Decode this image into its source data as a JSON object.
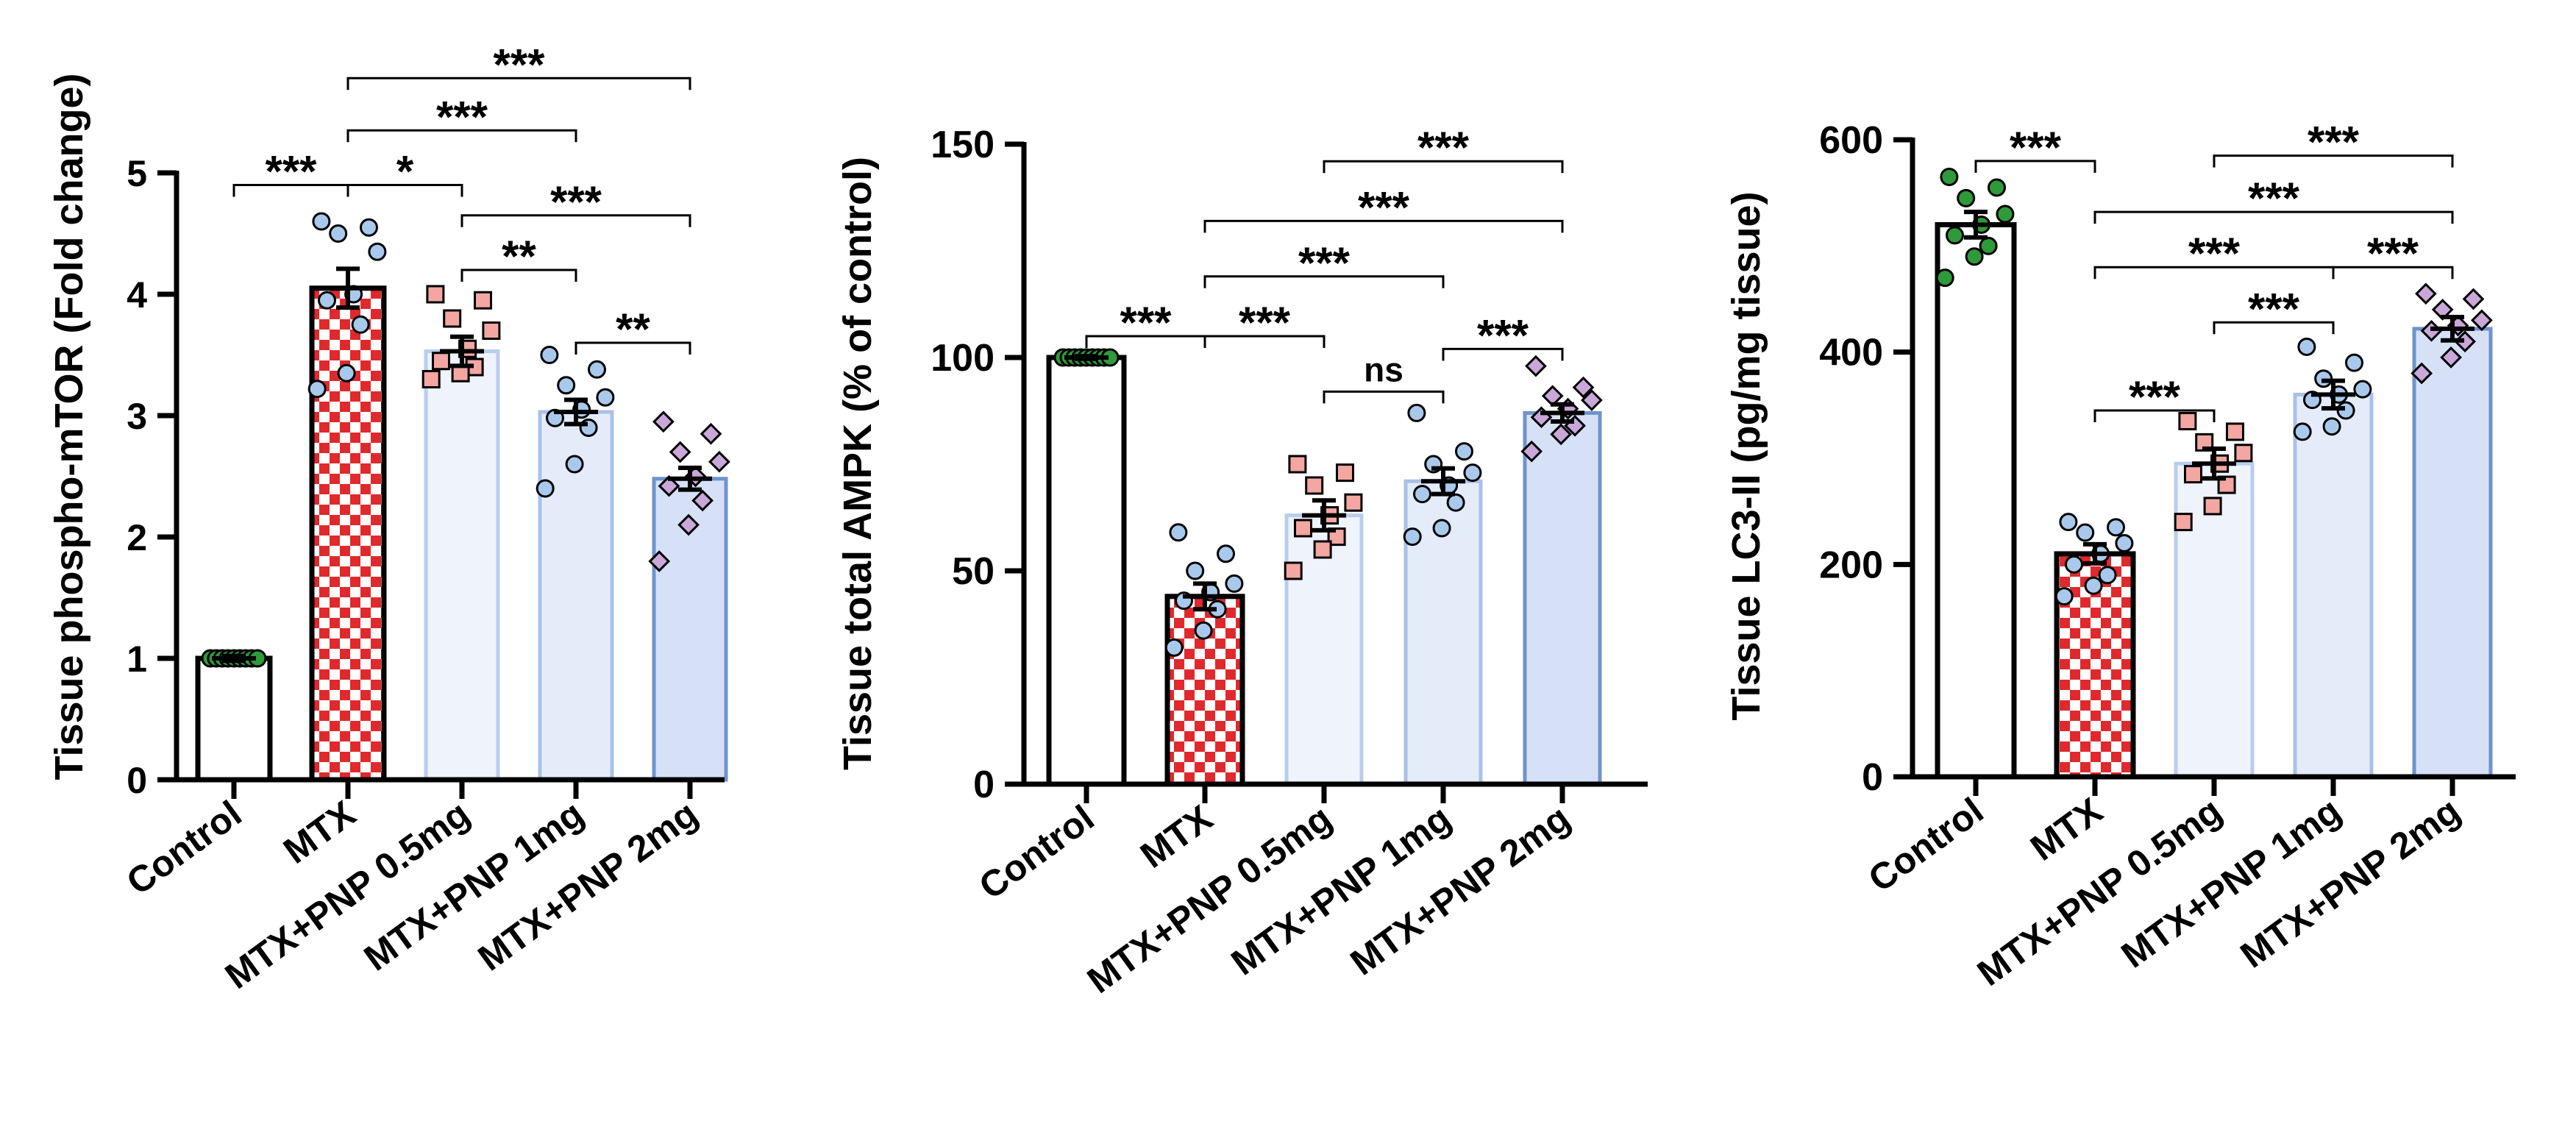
{
  "colors": {
    "control_fill": "#ffffff",
    "checker_red": "#e0292d",
    "checker_white": "#ffffff",
    "pnp05_fill": "#eef3fc",
    "pnp05_stroke": "#b9cdee",
    "pnp1_fill": "#e4ecfa",
    "pnp1_stroke": "#a9c1e8",
    "pnp2_fill": "#d6e1f7",
    "pnp2_stroke": "#6f93cc",
    "dot_control": "#2e9a39",
    "dot_mtx": "#a9c9ec",
    "dot_pnp05": "#f4a6a2",
    "dot_pnp1": "#a9c9ec",
    "dot_pnp2": "#c9a7d8"
  },
  "chart_data": [
    {
      "type": "bar",
      "title": "",
      "ylabel": "Tissue phospho-mTOR (Fold change)",
      "xlabel": "",
      "categories": [
        "Control",
        "MTX",
        "MTX+PNP 0.5mg",
        "MTX+PNP 1mg",
        "MTX+PNP 2mg"
      ],
      "values": [
        1.0,
        4.05,
        3.53,
        3.03,
        2.48
      ],
      "sem": [
        0.02,
        0.16,
        0.12,
        0.1,
        0.09
      ],
      "ylim": [
        0,
        5
      ],
      "yticks": [
        "0",
        "1",
        "2",
        "3",
        "4",
        "5"
      ],
      "points": [
        [
          1.0,
          1.0,
          1.0,
          1.0,
          1.0,
          1.0,
          1.0,
          1.0,
          1.0
        ],
        [
          4.6,
          4.55,
          4.5,
          4.35,
          4.0,
          3.95,
          3.75,
          3.35,
          3.22
        ],
        [
          4.0,
          3.95,
          3.8,
          3.7,
          3.55,
          3.45,
          3.4,
          3.35,
          3.3
        ],
        [
          3.5,
          3.38,
          3.25,
          3.15,
          3.05,
          2.98,
          2.9,
          2.6,
          2.4
        ],
        [
          2.95,
          2.85,
          2.7,
          2.62,
          2.5,
          2.42,
          2.3,
          2.1,
          1.8
        ]
      ],
      "significance": [
        {
          "from": 0,
          "to": 1,
          "label": "***",
          "y": 4.9
        },
        {
          "from": 1,
          "to": 2,
          "label": "*",
          "y": 4.9
        },
        {
          "from": 1,
          "to": 3,
          "label": "***",
          "y": 5.35
        },
        {
          "from": 1,
          "to": 4,
          "label": "***",
          "y": 5.78
        },
        {
          "from": 2,
          "to": 3,
          "label": "**",
          "y": 4.2
        },
        {
          "from": 2,
          "to": 4,
          "label": "***",
          "y": 4.65
        },
        {
          "from": 3,
          "to": 4,
          "label": "**",
          "y": 3.6
        }
      ]
    },
    {
      "type": "bar",
      "title": "",
      "ylabel": "Tissue total AMPK (% of control)",
      "xlabel": "",
      "categories": [
        "Control",
        "MTX",
        "MTX+PNP 0.5mg",
        "MTX+PNP 1mg",
        "MTX+PNP 2mg"
      ],
      "values": [
        100,
        44,
        63,
        71,
        87
      ],
      "sem": [
        0.3,
        3,
        3.5,
        3,
        2
      ],
      "ylim": [
        0,
        150
      ],
      "yticks": [
        "0",
        "50",
        "100",
        "150"
      ],
      "points": [
        [
          100,
          100,
          100,
          100,
          100,
          100,
          100,
          100,
          100
        ],
        [
          59,
          54,
          50,
          47,
          45,
          43,
          41,
          36,
          32
        ],
        [
          75,
          73,
          70,
          66,
          63,
          60,
          58,
          55,
          50
        ],
        [
          87,
          78,
          75,
          73,
          70,
          68,
          66,
          60,
          58
        ],
        [
          98,
          93,
          91,
          90,
          88,
          86,
          84,
          82,
          78
        ]
      ],
      "significance": [
        {
          "from": 0,
          "to": 1,
          "label": "***",
          "y": 105
        },
        {
          "from": 1,
          "to": 2,
          "label": "***",
          "y": 105
        },
        {
          "from": 1,
          "to": 3,
          "label": "***",
          "y": 119
        },
        {
          "from": 1,
          "to": 4,
          "label": "***",
          "y": 132
        },
        {
          "from": 2,
          "to": 4,
          "label": "***",
          "y": 146
        },
        {
          "from": 2,
          "to": 3,
          "label": "ns",
          "y": 92
        },
        {
          "from": 3,
          "to": 4,
          "label": "***",
          "y": 102
        }
      ]
    },
    {
      "type": "bar",
      "title": "",
      "ylabel": "Tissue LC3-II (pg/mg tissue)",
      "xlabel": "",
      "categories": [
        "Control",
        "MTX",
        "MTX+PNP 0.5mg",
        "MTX+PNP 1mg",
        "MTX+PNP 2mg"
      ],
      "values": [
        520,
        210,
        295,
        360,
        422
      ],
      "sem": [
        12,
        9,
        14,
        13,
        11
      ],
      "ylim": [
        0,
        600
      ],
      "yticks": [
        "0",
        "200",
        "400",
        "600"
      ],
      "points": [
        [
          565,
          555,
          545,
          530,
          520,
          510,
          500,
          490,
          470
        ],
        [
          240,
          235,
          230,
          220,
          210,
          200,
          190,
          180,
          170
        ],
        [
          335,
          325,
          315,
          305,
          295,
          285,
          275,
          255,
          240
        ],
        [
          405,
          390,
          375,
          365,
          360,
          355,
          345,
          330,
          325
        ],
        [
          455,
          450,
          440,
          430,
          425,
          420,
          410,
          395,
          380
        ]
      ],
      "significance": [
        {
          "from": 0,
          "to": 1,
          "label": "***",
          "y": 580
        },
        {
          "from": 1,
          "to": 4,
          "label": "***",
          "y": 532
        },
        {
          "from": 1,
          "to": 3,
          "label": "***",
          "y": 480
        },
        {
          "from": 1,
          "to": 2,
          "label": "***",
          "y": 345
        },
        {
          "from": 2,
          "to": 4,
          "label": "***",
          "y": 585
        },
        {
          "from": 2,
          "to": 3,
          "label": "***",
          "y": 428
        },
        {
          "from": 3,
          "to": 4,
          "label": "***",
          "y": 480
        }
      ]
    }
  ]
}
